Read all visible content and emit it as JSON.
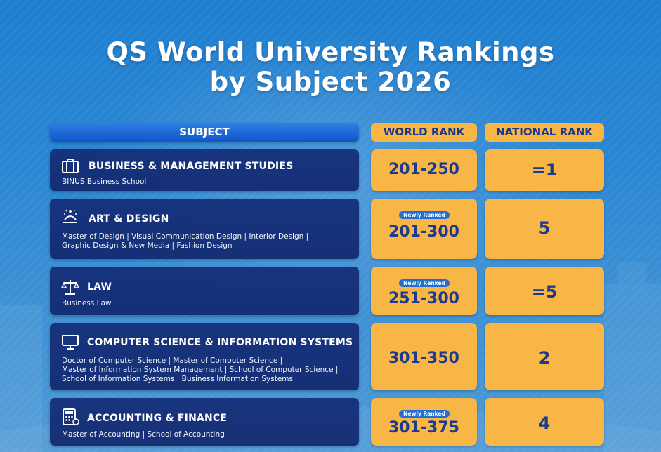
{
  "title": {
    "line1": "QS World University Rankings",
    "line2": "by Subject 2026"
  },
  "headers": {
    "subject": "SUBJECT",
    "world_rank": "WORLD RANK",
    "national_rank": "NATIONAL RANK"
  },
  "rows": [
    {
      "icon": "briefcase-icon",
      "subject": "BUSINESS & MANAGEMENT STUDIES",
      "programs": "BINUS Business School",
      "badge": "",
      "world_rank": "201-250",
      "national_rank": "=1"
    },
    {
      "icon": "art-design-icon",
      "subject": "ART & DESIGN",
      "programs_line1": "Master of Design | Visual Communication Design | Interior Design |",
      "programs_line2": "Graphic Design & New Media | Fashion Design",
      "badge": "Newly Ranked",
      "world_rank": "201-300",
      "national_rank": "5"
    },
    {
      "icon": "scales-icon",
      "subject": "LAW",
      "programs": "Business Law",
      "badge": "Newly Ranked",
      "world_rank": "251-300",
      "national_rank": "=5"
    },
    {
      "icon": "monitor-icon",
      "subject": "COMPUTER SCIENCE & INFORMATION SYSTEMS",
      "programs_line1": "Doctor of Computer Science | Master of Computer Science |",
      "programs_line2": "Master of Information System Management | School of Computer Science |",
      "programs_line3": "School of Information Systems | Business Information Systems",
      "badge": "",
      "world_rank": "301-350",
      "national_rank": "2"
    },
    {
      "icon": "calculator-icon",
      "subject": "ACCOUNTING & FINANCE",
      "programs": "Master of Accounting | School of Accounting",
      "badge": "Newly Ranked",
      "world_rank": "301-375",
      "national_rank": "4"
    }
  ]
}
